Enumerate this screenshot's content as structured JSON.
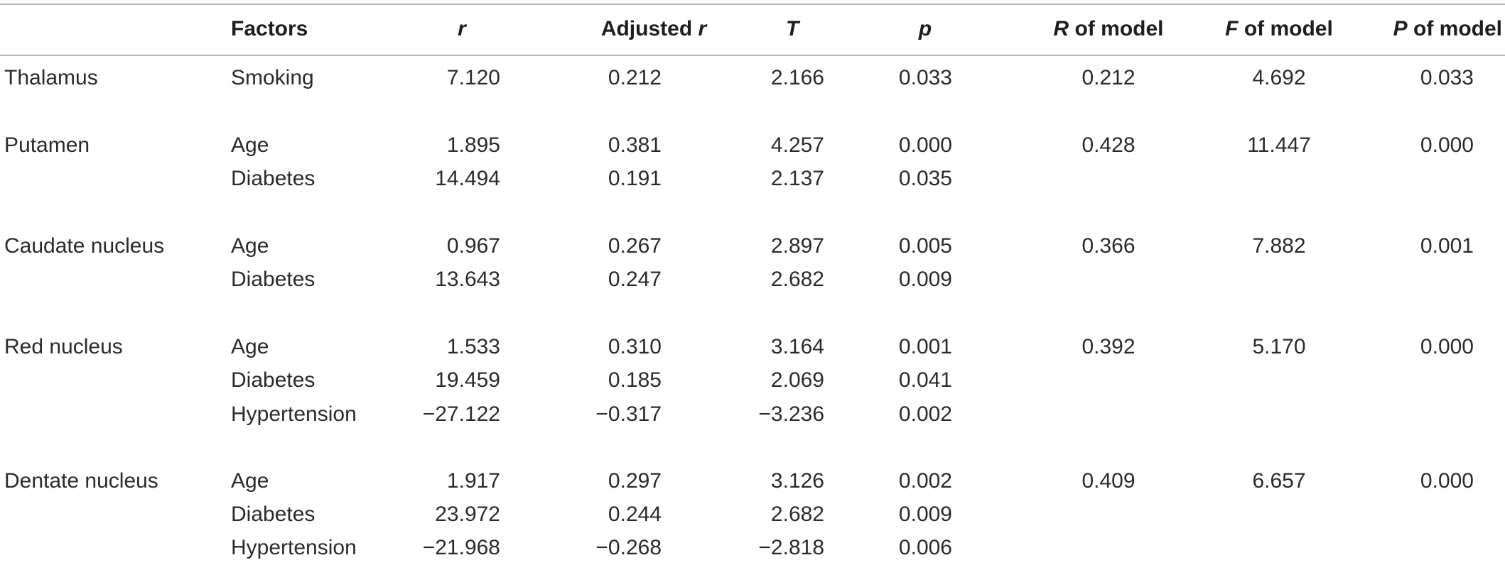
{
  "table": {
    "headers": {
      "region": "",
      "factors": "Factors",
      "r_italic": "r",
      "adjusted_prefix": "Adjusted ",
      "adjusted_italic": "r",
      "T_italic": "T",
      "p_italic": "p",
      "R_model_italic": "R",
      "R_model_rest": " of model",
      "F_model_italic": "F",
      "F_model_rest": " of model",
      "P_model_italic": "P",
      "P_model_rest": " of model"
    },
    "rows": [
      {
        "region": "Thalamus",
        "factor": "Smoking",
        "r": "7.120",
        "adj_r": "0.212",
        "T": "2.166",
        "p": "0.033",
        "R_model": "0.212",
        "F_model": "4.692",
        "P_model": "0.033"
      },
      {
        "region": "Putamen",
        "factor": "Age",
        "r": "1.895",
        "adj_r": "0.381",
        "T": "4.257",
        "p": "0.000",
        "R_model": "0.428",
        "F_model": "11.447",
        "P_model": "0.000"
      },
      {
        "region": "",
        "factor": "Diabetes",
        "r": "14.494",
        "adj_r": "0.191",
        "T": "2.137",
        "p": "0.035",
        "R_model": "",
        "F_model": "",
        "P_model": ""
      },
      {
        "region": "Caudate nucleus",
        "factor": "Age",
        "r": "0.967",
        "adj_r": "0.267",
        "T": "2.897",
        "p": "0.005",
        "R_model": "0.366",
        "F_model": "7.882",
        "P_model": "0.001"
      },
      {
        "region": "",
        "factor": "Diabetes",
        "r": "13.643",
        "adj_r": "0.247",
        "T": "2.682",
        "p": "0.009",
        "R_model": "",
        "F_model": "",
        "P_model": ""
      },
      {
        "region": "Red nucleus",
        "factor": "Age",
        "r": "1.533",
        "adj_r": "0.310",
        "T": "3.164",
        "p": "0.001",
        "R_model": "0.392",
        "F_model": "5.170",
        "P_model": "0.000"
      },
      {
        "region": "",
        "factor": "Diabetes",
        "r": "19.459",
        "adj_r": "0.185",
        "T": "2.069",
        "p": "0.041",
        "R_model": "",
        "F_model": "",
        "P_model": ""
      },
      {
        "region": "",
        "factor": "Hypertension",
        "r": "−27.122",
        "adj_r": "−0.317",
        "T": "−3.236",
        "p": "0.002",
        "R_model": "",
        "F_model": "",
        "P_model": ""
      },
      {
        "region": "Dentate nucleus",
        "factor": "Age",
        "r": "1.917",
        "adj_r": "0.297",
        "T": "3.126",
        "p": "0.002",
        "R_model": "0.409",
        "F_model": "6.657",
        "P_model": "0.000"
      },
      {
        "region": "",
        "factor": "Diabetes",
        "r": "23.972",
        "adj_r": "0.244",
        "T": "2.682",
        "p": "0.009",
        "R_model": "",
        "F_model": "",
        "P_model": ""
      },
      {
        "region": "",
        "factor": "Hypertension",
        "r": "−21.968",
        "adj_r": "−0.268",
        "T": "−2.818",
        "p": "0.006",
        "R_model": "",
        "F_model": "",
        "P_model": ""
      }
    ]
  }
}
